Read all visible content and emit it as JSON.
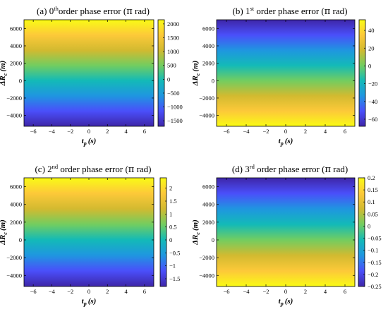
{
  "colors": {
    "stops": [
      "#3e26a8",
      "#4a4ffa",
      "#1f96e0",
      "#13bab7",
      "#72cd60",
      "#d2ba30",
      "#fdc939",
      "#f9fb15"
    ]
  },
  "chart_data": [
    {
      "type": "heatmap",
      "panel_label": "(a)",
      "order_num": "0",
      "order_sup": "th",
      "title_rest": "order phase error (",
      "pi": "π",
      "unit": " rad)",
      "xlabel": "t",
      "xlabel_sub": "p",
      "xlabel_unit": "(s)",
      "ylabel": "ΔR",
      "ylabel_sub": "c",
      "ylabel_unit": "(m)",
      "xlim": [
        -7,
        7
      ],
      "ylim": [
        -5250,
        7000
      ],
      "xticks": [
        -6,
        -4,
        -2,
        0,
        2,
        4,
        6
      ],
      "yticks": [
        -4000,
        -2000,
        0,
        2000,
        4000,
        6000
      ],
      "color_range": [
        -1700,
        2150
      ],
      "color_ticks": [
        -1500,
        -1000,
        -500,
        0,
        500,
        1000,
        1500,
        2000
      ],
      "gradient": "ascending-with-y"
    },
    {
      "type": "heatmap",
      "panel_label": "(b)",
      "order_num": "1",
      "order_sup": "st",
      "title_rest": " order phase error (",
      "pi": "π",
      "unit": " rad)",
      "xlabel": "t",
      "xlabel_sub": "p",
      "xlabel_unit": "(s)",
      "ylabel": "ΔR",
      "ylabel_sub": "c",
      "ylabel_unit": "(m)",
      "xlim": [
        -7,
        7
      ],
      "ylim": [
        -5250,
        7000
      ],
      "xticks": [
        -6,
        -4,
        -2,
        0,
        2,
        4,
        6
      ],
      "yticks": [
        -4000,
        -2000,
        0,
        2000,
        4000,
        6000
      ],
      "color_range": [
        -68,
        52
      ],
      "color_ticks": [
        -60,
        -40,
        -20,
        0,
        20,
        40
      ],
      "gradient": "descending-with-y"
    },
    {
      "type": "heatmap",
      "panel_label": "(c)",
      "order_num": "2",
      "order_sup": "nd",
      "title_rest": " order phase error (",
      "pi": "π",
      "unit": " rad)",
      "xlabel": "t",
      "xlabel_sub": "p",
      "xlabel_unit": "(s)",
      "ylabel": "ΔR",
      "ylabel_sub": "c",
      "ylabel_unit": "(m)",
      "xlim": [
        -7,
        7
      ],
      "ylim": [
        -5250,
        7000
      ],
      "xticks": [
        -6,
        -4,
        -2,
        0,
        2,
        4,
        6
      ],
      "yticks": [
        -4000,
        -2000,
        0,
        2000,
        4000,
        6000
      ],
      "color_range": [
        -1.8,
        2.4
      ],
      "color_ticks": [
        -1.5,
        -1,
        -0.5,
        0,
        0.5,
        1,
        1.5,
        2
      ],
      "gradient": "ascending-with-y"
    },
    {
      "type": "heatmap",
      "panel_label": "(d)",
      "order_num": "3",
      "order_sup": "rd",
      "title_rest": " order phase error (",
      "pi": "π",
      "unit": " rad)",
      "xlabel": "t",
      "xlabel_sub": "p",
      "xlabel_unit": "(s)",
      "ylabel": "ΔR",
      "ylabel_sub": "c",
      "ylabel_unit": "(m)",
      "xlim": [
        -7,
        7
      ],
      "ylim": [
        -5250,
        7000
      ],
      "xticks": [
        -6,
        -4,
        -2,
        0,
        2,
        4,
        6
      ],
      "yticks": [
        -4000,
        -2000,
        0,
        2000,
        4000,
        6000
      ],
      "color_range": [
        -0.25,
        0.2
      ],
      "color_ticks": [
        -0.25,
        -0.2,
        -0.15,
        -0.1,
        -0.05,
        0,
        0.05,
        0.1,
        0.15,
        0.2
      ],
      "gradient": "descending-with-y"
    }
  ]
}
